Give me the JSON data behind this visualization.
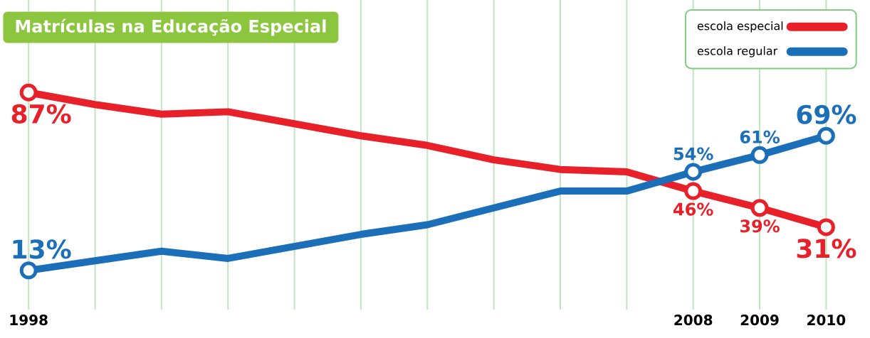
{
  "chart_data": {
    "type": "line",
    "title": "Matrículas na Educação Especial",
    "categories": [
      "1998",
      null,
      null,
      null,
      null,
      null,
      null,
      null,
      null,
      null,
      "2008",
      "2009",
      "2010"
    ],
    "series": [
      {
        "name": "escola especial",
        "color": "#e8202a",
        "values": [
          87,
          82,
          78,
          79,
          74,
          69,
          65,
          59,
          55,
          54,
          46,
          39,
          31
        ],
        "value_labels": [
          "87%",
          null,
          null,
          null,
          null,
          null,
          null,
          null,
          null,
          null,
          "46%",
          "39%",
          "31%"
        ]
      },
      {
        "name": "escola regular",
        "color": "#1a6fb8",
        "values": [
          13,
          17,
          21,
          18,
          23,
          28,
          32,
          39,
          46,
          46,
          54,
          61,
          69
        ],
        "value_labels": [
          "13%",
          null,
          null,
          null,
          null,
          null,
          null,
          null,
          null,
          null,
          "54%",
          "61%",
          "69%"
        ]
      }
    ],
    "grid": "x",
    "legend": "top right",
    "line_style": "solid"
  }
}
